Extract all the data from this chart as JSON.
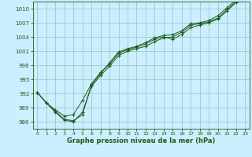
{
  "xlabel": "Graphe pression niveau de la mer (hPa)",
  "bg_color": "#cceeff",
  "grid_color": "#99cccc",
  "line_color": "#1a5c1a",
  "xlim": [
    -0.5,
    23.5
  ],
  "ylim": [
    984.5,
    1011.5
  ],
  "yticks": [
    986,
    989,
    992,
    995,
    998,
    1001,
    1004,
    1007,
    1010
  ],
  "xticks": [
    0,
    1,
    2,
    3,
    4,
    5,
    6,
    7,
    8,
    9,
    10,
    11,
    12,
    13,
    14,
    15,
    16,
    17,
    18,
    19,
    20,
    21,
    22,
    23
  ],
  "series": [
    [
      992.2,
      990.0,
      988.5,
      987.2,
      987.5,
      990.5,
      994.0,
      996.5,
      998.2,
      1000.5,
      1001.3,
      1001.8,
      1002.5,
      1003.5,
      1004.0,
      1003.5,
      1004.5,
      1006.0,
      1006.5,
      1007.0,
      1007.8,
      1009.5,
      1011.3,
      1011.8
    ],
    [
      992.2,
      990.0,
      988.0,
      986.3,
      986.0,
      988.0,
      993.5,
      995.8,
      997.8,
      1000.0,
      1001.0,
      1001.5,
      1002.0,
      1003.0,
      1003.8,
      1004.0,
      1005.0,
      1006.5,
      1006.8,
      1007.2,
      1008.0,
      1009.8,
      1011.5,
      1012.0
    ],
    [
      992.2,
      990.0,
      988.2,
      986.5,
      986.2,
      987.5,
      993.8,
      996.2,
      998.5,
      1000.8,
      1001.5,
      1002.0,
      1002.8,
      1003.8,
      1004.3,
      1004.5,
      1005.3,
      1006.8,
      1007.0,
      1007.5,
      1008.5,
      1010.2,
      1011.8,
      1012.3
    ]
  ]
}
